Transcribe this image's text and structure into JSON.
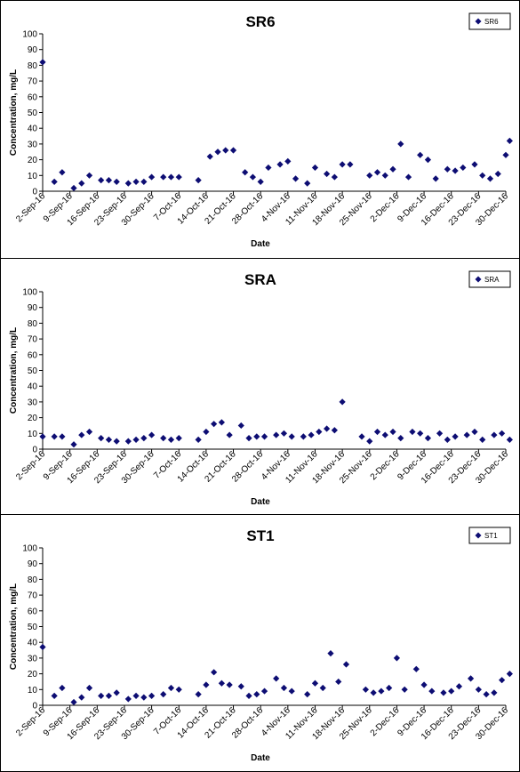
{
  "chart_data": [
    {
      "type": "scatter",
      "title": "SR6",
      "xlabel": "Date",
      "ylabel": "Concentration, mg/L",
      "ylim": [
        0,
        100
      ],
      "yticks": [
        0,
        10,
        20,
        30,
        40,
        50,
        60,
        70,
        80,
        90,
        100
      ],
      "xlim": [
        "2016-09-02",
        "2016-12-30"
      ],
      "xticks": [
        "2-Sep-16",
        "9-Sep-16",
        "16-Sep-16",
        "23-Sep-16",
        "30-Sep-16",
        "7-Oct-16",
        "14-Oct-16",
        "21-Oct-16",
        "28-Oct-16",
        "4-Nov-16",
        "11-Nov-16",
        "18-Nov-16",
        "25-Nov-16",
        "2-Dec-16",
        "9-Dec-16",
        "16-Dec-16",
        "23-Dec-16",
        "30-Dec-16"
      ],
      "legend_position": "top-right",
      "series": [
        {
          "name": "SR6",
          "color": "#0d0d73",
          "marker": "diamond",
          "points": [
            [
              "2016-09-02",
              82
            ],
            [
              "2016-09-05",
              6
            ],
            [
              "2016-09-07",
              12
            ],
            [
              "2016-09-10",
              2
            ],
            [
              "2016-09-12",
              5
            ],
            [
              "2016-09-14",
              10
            ],
            [
              "2016-09-17",
              7
            ],
            [
              "2016-09-19",
              7
            ],
            [
              "2016-09-21",
              6
            ],
            [
              "2016-09-24",
              5
            ],
            [
              "2016-09-26",
              6
            ],
            [
              "2016-09-28",
              6
            ],
            [
              "2016-09-30",
              9
            ],
            [
              "2016-10-03",
              9
            ],
            [
              "2016-10-05",
              9
            ],
            [
              "2016-10-07",
              9
            ],
            [
              "2016-10-12",
              7
            ],
            [
              "2016-10-15",
              22
            ],
            [
              "2016-10-17",
              25
            ],
            [
              "2016-10-19",
              26
            ],
            [
              "2016-10-21",
              26
            ],
            [
              "2016-10-24",
              12
            ],
            [
              "2016-10-26",
              9
            ],
            [
              "2016-10-28",
              6
            ],
            [
              "2016-10-30",
              15
            ],
            [
              "2016-11-02",
              17
            ],
            [
              "2016-11-04",
              19
            ],
            [
              "2016-11-06",
              8
            ],
            [
              "2016-11-09",
              5
            ],
            [
              "2016-11-11",
              15
            ],
            [
              "2016-11-14",
              11
            ],
            [
              "2016-11-16",
              9
            ],
            [
              "2016-11-18",
              17
            ],
            [
              "2016-11-20",
              17
            ],
            [
              "2016-11-25",
              10
            ],
            [
              "2016-11-27",
              12
            ],
            [
              "2016-11-29",
              10
            ],
            [
              "2016-12-01",
              14
            ],
            [
              "2016-12-03",
              30
            ],
            [
              "2016-12-05",
              9
            ],
            [
              "2016-12-08",
              23
            ],
            [
              "2016-12-10",
              20
            ],
            [
              "2016-12-12",
              8
            ],
            [
              "2016-12-15",
              14
            ],
            [
              "2016-12-17",
              13
            ],
            [
              "2016-12-19",
              15
            ],
            [
              "2016-12-22",
              17
            ],
            [
              "2016-12-24",
              10
            ],
            [
              "2016-12-26",
              8
            ],
            [
              "2016-12-28",
              11
            ],
            [
              "2016-12-30",
              23
            ],
            [
              "2016-12-31",
              32
            ]
          ]
        }
      ]
    },
    {
      "type": "scatter",
      "title": "SRA",
      "xlabel": "Date",
      "ylabel": "Concentration, mg/L",
      "ylim": [
        0,
        100
      ],
      "yticks": [
        0,
        10,
        20,
        30,
        40,
        50,
        60,
        70,
        80,
        90,
        100
      ],
      "xlim": [
        "2016-09-02",
        "2016-12-30"
      ],
      "xticks": [
        "2-Sep-16",
        "9-Sep-16",
        "16-Sep-16",
        "23-Sep-16",
        "30-Sep-16",
        "7-Oct-16",
        "14-Oct-16",
        "21-Oct-16",
        "28-Oct-16",
        "4-Nov-16",
        "11-Nov-16",
        "18-Nov-16",
        "25-Nov-16",
        "2-Dec-16",
        "9-Dec-16",
        "16-Dec-16",
        "23-Dec-16",
        "30-Dec-16"
      ],
      "legend_position": "top-right",
      "series": [
        {
          "name": "SRA",
          "color": "#0d0d73",
          "marker": "diamond",
          "points": [
            [
              "2016-09-02",
              8
            ],
            [
              "2016-09-05",
              8
            ],
            [
              "2016-09-07",
              8
            ],
            [
              "2016-09-10",
              3
            ],
            [
              "2016-09-12",
              9
            ],
            [
              "2016-09-14",
              11
            ],
            [
              "2016-09-17",
              7
            ],
            [
              "2016-09-19",
              6
            ],
            [
              "2016-09-21",
              5
            ],
            [
              "2016-09-24",
              5
            ],
            [
              "2016-09-26",
              6
            ],
            [
              "2016-09-28",
              7
            ],
            [
              "2016-09-30",
              9
            ],
            [
              "2016-10-03",
              7
            ],
            [
              "2016-10-05",
              6
            ],
            [
              "2016-10-07",
              7
            ],
            [
              "2016-10-12",
              6
            ],
            [
              "2016-10-14",
              11
            ],
            [
              "2016-10-16",
              16
            ],
            [
              "2016-10-18",
              17
            ],
            [
              "2016-10-20",
              9
            ],
            [
              "2016-10-23",
              15
            ],
            [
              "2016-10-25",
              7
            ],
            [
              "2016-10-27",
              8
            ],
            [
              "2016-10-29",
              8
            ],
            [
              "2016-11-01",
              9
            ],
            [
              "2016-11-03",
              10
            ],
            [
              "2016-11-05",
              8
            ],
            [
              "2016-11-08",
              8
            ],
            [
              "2016-11-10",
              9
            ],
            [
              "2016-11-12",
              11
            ],
            [
              "2016-11-14",
              13
            ],
            [
              "2016-11-16",
              12
            ],
            [
              "2016-11-18",
              30
            ],
            [
              "2016-11-23",
              8
            ],
            [
              "2016-11-25",
              5
            ],
            [
              "2016-11-27",
              11
            ],
            [
              "2016-11-29",
              9
            ],
            [
              "2016-12-01",
              11
            ],
            [
              "2016-12-03",
              7
            ],
            [
              "2016-12-06",
              11
            ],
            [
              "2016-12-08",
              10
            ],
            [
              "2016-12-10",
              7
            ],
            [
              "2016-12-13",
              10
            ],
            [
              "2016-12-15",
              6
            ],
            [
              "2016-12-17",
              8
            ],
            [
              "2016-12-20",
              9
            ],
            [
              "2016-12-22",
              11
            ],
            [
              "2016-12-24",
              6
            ],
            [
              "2016-12-27",
              9
            ],
            [
              "2016-12-29",
              10
            ],
            [
              "2016-12-31",
              6
            ]
          ]
        }
      ]
    },
    {
      "type": "scatter",
      "title": "ST1",
      "xlabel": "Date",
      "ylabel": "Concentration, mg/L",
      "ylim": [
        0,
        100
      ],
      "yticks": [
        0,
        10,
        20,
        30,
        40,
        50,
        60,
        70,
        80,
        90,
        100
      ],
      "xlim": [
        "2016-09-02",
        "2016-12-30"
      ],
      "xticks": [
        "2-Sep-16",
        "9-Sep-16",
        "16-Sep-16",
        "23-Sep-16",
        "30-Sep-16",
        "7-Oct-16",
        "14-Oct-16",
        "21-Oct-16",
        "28-Oct-16",
        "4-Nov-16",
        "11-Nov-16",
        "18-Nov-16",
        "25-Nov-16",
        "2-Dec-16",
        "9-Dec-16",
        "16-Dec-16",
        "23-Dec-16",
        "30-Dec-16"
      ],
      "legend_position": "top-right",
      "series": [
        {
          "name": "ST1",
          "color": "#0d0d73",
          "marker": "diamond",
          "points": [
            [
              "2016-09-02",
              37
            ],
            [
              "2016-09-05",
              6
            ],
            [
              "2016-09-07",
              11
            ],
            [
              "2016-09-10",
              2
            ],
            [
              "2016-09-12",
              5
            ],
            [
              "2016-09-14",
              11
            ],
            [
              "2016-09-17",
              6
            ],
            [
              "2016-09-19",
              6
            ],
            [
              "2016-09-21",
              8
            ],
            [
              "2016-09-24",
              4
            ],
            [
              "2016-09-26",
              6
            ],
            [
              "2016-09-28",
              5
            ],
            [
              "2016-09-30",
              6
            ],
            [
              "2016-10-03",
              7
            ],
            [
              "2016-10-05",
              11
            ],
            [
              "2016-10-07",
              10
            ],
            [
              "2016-10-12",
              7
            ],
            [
              "2016-10-14",
              13
            ],
            [
              "2016-10-16",
              21
            ],
            [
              "2016-10-18",
              14
            ],
            [
              "2016-10-20",
              13
            ],
            [
              "2016-10-23",
              12
            ],
            [
              "2016-10-25",
              6
            ],
            [
              "2016-10-27",
              7
            ],
            [
              "2016-10-29",
              9
            ],
            [
              "2016-11-01",
              17
            ],
            [
              "2016-11-03",
              11
            ],
            [
              "2016-11-05",
              9
            ],
            [
              "2016-11-09",
              7
            ],
            [
              "2016-11-11",
              14
            ],
            [
              "2016-11-13",
              11
            ],
            [
              "2016-11-15",
              33
            ],
            [
              "2016-11-17",
              15
            ],
            [
              "2016-11-19",
              26
            ],
            [
              "2016-11-24",
              10
            ],
            [
              "2016-11-26",
              8
            ],
            [
              "2016-11-28",
              9
            ],
            [
              "2016-11-30",
              11
            ],
            [
              "2016-12-02",
              30
            ],
            [
              "2016-12-04",
              10
            ],
            [
              "2016-12-07",
              23
            ],
            [
              "2016-12-09",
              13
            ],
            [
              "2016-12-11",
              9
            ],
            [
              "2016-12-14",
              8
            ],
            [
              "2016-12-16",
              9
            ],
            [
              "2016-12-18",
              12
            ],
            [
              "2016-12-21",
              17
            ],
            [
              "2016-12-23",
              10
            ],
            [
              "2016-12-25",
              7
            ],
            [
              "2016-12-27",
              8
            ],
            [
              "2016-12-29",
              16
            ],
            [
              "2016-12-31",
              20
            ]
          ]
        }
      ]
    }
  ]
}
